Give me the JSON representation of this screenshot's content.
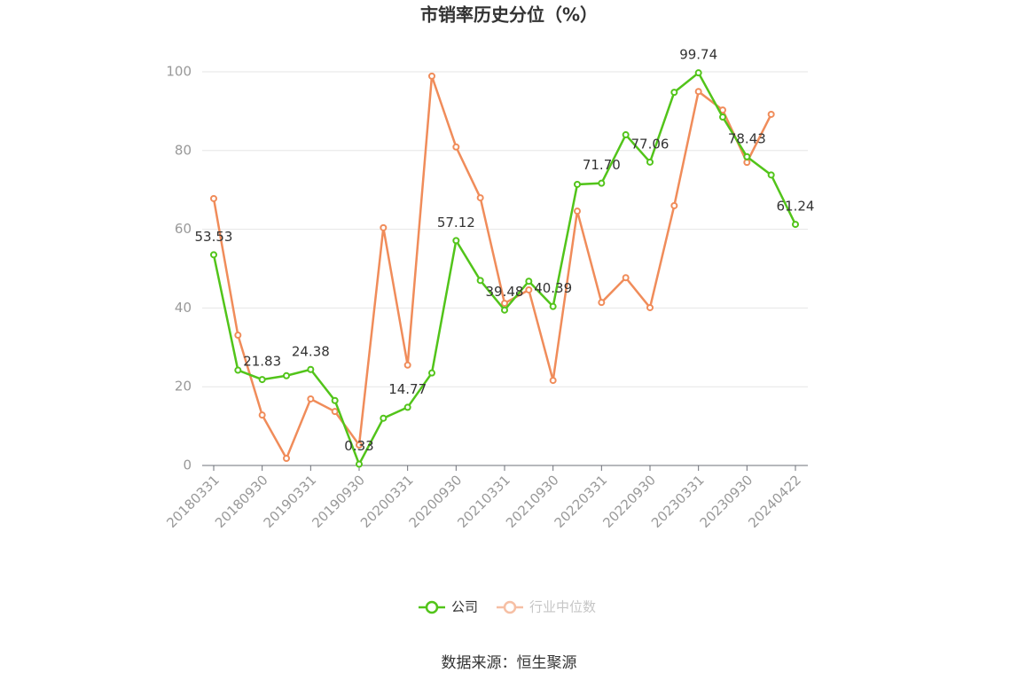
{
  "chart_data": {
    "type": "line",
    "title": "市销率历史分位（%）",
    "categories": [
      "20180331",
      null,
      "20180930",
      null,
      "20190331",
      null,
      "20190930",
      null,
      "20200331",
      null,
      "20200930",
      null,
      "20210331",
      null,
      "20210930",
      null,
      "20220331",
      null,
      "20220930",
      null,
      "20230331",
      null,
      "20230930",
      null,
      "20240422"
    ],
    "series": [
      {
        "name": "公司",
        "color": "#52c41a",
        "values": [
          53.53,
          24.2,
          21.83,
          22.8,
          24.38,
          16.5,
          0.33,
          12.0,
          14.77,
          23.5,
          57.12,
          47.0,
          39.48,
          46.8,
          40.39,
          71.4,
          71.7,
          84.0,
          77.06,
          94.8,
          99.74,
          88.5,
          78.43,
          73.8,
          61.24
        ],
        "value_labels": [
          "53.53",
          null,
          "21.83",
          null,
          "24.38",
          null,
          "0.33",
          null,
          "14.77",
          null,
          "57.12",
          null,
          "39.48",
          null,
          "40.39",
          null,
          "71.70",
          null,
          "77.06",
          null,
          "99.74",
          null,
          "78.43",
          null,
          "61.24"
        ]
      },
      {
        "name": "行业中位数",
        "color": "#f08c5a",
        "values": [
          67.8,
          33.1,
          12.8,
          1.8,
          16.9,
          13.7,
          5.2,
          60.4,
          25.5,
          98.9,
          80.9,
          68.0,
          41.2,
          44.6,
          21.6,
          64.6,
          41.4,
          47.7,
          40.1,
          66.0,
          95.0,
          90.3,
          77.0,
          89.2,
          null
        ]
      }
    ],
    "ylim": [
      0,
      100
    ],
    "yticks": [
      0,
      20,
      40,
      60,
      80,
      100
    ],
    "grid": true,
    "source": "数据来源：恒生聚源"
  }
}
